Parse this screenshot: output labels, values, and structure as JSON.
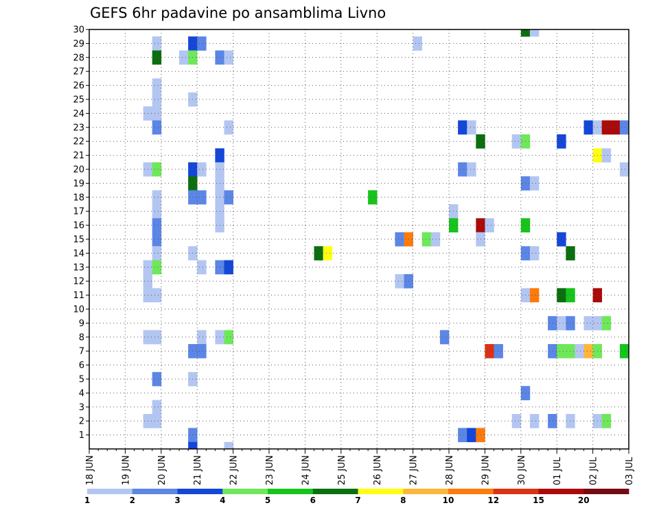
{
  "chart_data": {
    "type": "heatmap",
    "title": "GEFS 6hr padavine po ansamblima Livno",
    "xlabel": "",
    "ylabel": "",
    "x_tick_labels": [
      "18 JUN",
      "19 JUN",
      "20 JUN",
      "21 JUN",
      "22 JUN",
      "23 JUN",
      "24 JUN",
      "25 JUN",
      "26 JUN",
      "27 JUN",
      "28 JUN",
      "29 JUN",
      "30 JUN",
      "01 JUL",
      "02 JUL",
      "03 JUL"
    ],
    "y_tick_labels": [
      "1",
      "2",
      "3",
      "4",
      "5",
      "6",
      "7",
      "8",
      "9",
      "10",
      "11",
      "12",
      "13",
      "14",
      "15",
      "16",
      "17",
      "18",
      "19",
      "20",
      "21",
      "22",
      "23",
      "24",
      "25",
      "26",
      "27",
      "28",
      "29",
      "30"
    ],
    "y_range": [
      0,
      30
    ],
    "x_range_days": [
      0,
      15
    ],
    "time_step_hours": 6,
    "grid": "dotted",
    "colorbar": {
      "placement": "bottom",
      "boundaries": [
        1,
        2,
        3,
        4,
        5,
        6,
        7,
        8,
        10,
        12,
        15,
        20
      ],
      "labels": [
        "1",
        "2",
        "3",
        "4",
        "5",
        "6",
        "7",
        "8",
        "10",
        "12",
        "15",
        "20"
      ],
      "colors": [
        "#b3c6f2",
        "#5b86e6",
        "#1446d8",
        "#6ee85a",
        "#16c41c",
        "#0b6f10",
        "#ffff14",
        "#ffb43a",
        "#ff7a0a",
        "#dc3214",
        "#aa0a0a",
        "#730a14"
      ]
    },
    "cells": [
      {
        "x": 1.75,
        "y": 29,
        "v": 1
      },
      {
        "x": 1.75,
        "y": 28,
        "v": 6
      },
      {
        "x": 1.75,
        "y": 26,
        "v": 1
      },
      {
        "x": 1.75,
        "y": 25,
        "v": 1
      },
      {
        "x": 1.5,
        "y": 24,
        "v": 1
      },
      {
        "x": 1.75,
        "y": 24,
        "v": 1
      },
      {
        "x": 1.75,
        "y": 23,
        "v": 2
      },
      {
        "x": 1.5,
        "y": 20,
        "v": 1
      },
      {
        "x": 1.75,
        "y": 20,
        "v": 4
      },
      {
        "x": 1.75,
        "y": 18,
        "v": 1
      },
      {
        "x": 1.75,
        "y": 17,
        "v": 1
      },
      {
        "x": 1.75,
        "y": 16,
        "v": 2
      },
      {
        "x": 1.75,
        "y": 15,
        "v": 2
      },
      {
        "x": 1.75,
        "y": 14,
        "v": 1
      },
      {
        "x": 1.5,
        "y": 13,
        "v": 1
      },
      {
        "x": 1.75,
        "y": 13,
        "v": 4
      },
      {
        "x": 1.5,
        "y": 12,
        "v": 1
      },
      {
        "x": 1.5,
        "y": 11,
        "v": 1
      },
      {
        "x": 1.75,
        "y": 11,
        "v": 1
      },
      {
        "x": 1.5,
        "y": 8,
        "v": 1
      },
      {
        "x": 1.75,
        "y": 8,
        "v": 1
      },
      {
        "x": 1.75,
        "y": 5,
        "v": 2
      },
      {
        "x": 1.75,
        "y": 3,
        "v": 1
      },
      {
        "x": 1.5,
        "y": 2,
        "v": 1
      },
      {
        "x": 1.75,
        "y": 2,
        "v": 1
      },
      {
        "x": 2.75,
        "y": 29,
        "v": 3
      },
      {
        "x": 3.0,
        "y": 29,
        "v": 2
      },
      {
        "x": 2.5,
        "y": 28,
        "v": 1
      },
      {
        "x": 2.75,
        "y": 28,
        "v": 4
      },
      {
        "x": 2.75,
        "y": 25,
        "v": 1
      },
      {
        "x": 2.75,
        "y": 20,
        "v": 3
      },
      {
        "x": 3.0,
        "y": 20,
        "v": 1
      },
      {
        "x": 2.75,
        "y": 19,
        "v": 6
      },
      {
        "x": 2.75,
        "y": 18,
        "v": 2
      },
      {
        "x": 3.0,
        "y": 18,
        "v": 2
      },
      {
        "x": 2.75,
        "y": 14,
        "v": 1
      },
      {
        "x": 3.0,
        "y": 13,
        "v": 1
      },
      {
        "x": 3.0,
        "y": 8,
        "v": 1
      },
      {
        "x": 2.75,
        "y": 7,
        "v": 2
      },
      {
        "x": 3.0,
        "y": 7,
        "v": 2
      },
      {
        "x": 2.75,
        "y": 5,
        "v": 1
      },
      {
        "x": 2.75,
        "y": 1,
        "v": 2
      },
      {
        "x": 2.75,
        "y": 0,
        "v": 3
      },
      {
        "x": 3.5,
        "y": 28,
        "v": 2
      },
      {
        "x": 3.75,
        "y": 28,
        "v": 1
      },
      {
        "x": 3.75,
        "y": 23,
        "v": 1
      },
      {
        "x": 3.5,
        "y": 21,
        "v": 3
      },
      {
        "x": 3.5,
        "y": 20,
        "v": 1
      },
      {
        "x": 3.5,
        "y": 19,
        "v": 1
      },
      {
        "x": 3.5,
        "y": 18,
        "v": 1
      },
      {
        "x": 3.75,
        "y": 18,
        "v": 2
      },
      {
        "x": 3.5,
        "y": 17,
        "v": 1
      },
      {
        "x": 3.5,
        "y": 16,
        "v": 1
      },
      {
        "x": 3.5,
        "y": 13,
        "v": 2
      },
      {
        "x": 3.75,
        "y": 13,
        "v": 3
      },
      {
        "x": 3.5,
        "y": 8,
        "v": 1
      },
      {
        "x": 3.75,
        "y": 8,
        "v": 4
      },
      {
        "x": 3.75,
        "y": 0,
        "v": 1
      },
      {
        "x": 6.25,
        "y": 14,
        "v": 6
      },
      {
        "x": 6.5,
        "y": 14,
        "v": 7
      },
      {
        "x": 7.75,
        "y": 18,
        "v": 5
      },
      {
        "x": 8.5,
        "y": 15,
        "v": 2
      },
      {
        "x": 8.75,
        "y": 15,
        "v": 10
      },
      {
        "x": 8.5,
        "y": 12,
        "v": 1
      },
      {
        "x": 8.75,
        "y": 12,
        "v": 2
      },
      {
        "x": 9.0,
        "y": 29,
        "v": 1
      },
      {
        "x": 9.25,
        "y": 15,
        "v": 4
      },
      {
        "x": 9.5,
        "y": 15,
        "v": 1
      },
      {
        "x": 9.75,
        "y": 8,
        "v": 2
      },
      {
        "x": 10.0,
        "y": 17,
        "v": 1
      },
      {
        "x": 10.0,
        "y": 16,
        "v": 5
      },
      {
        "x": 10.25,
        "y": 23,
        "v": 3
      },
      {
        "x": 10.5,
        "y": 23,
        "v": 1
      },
      {
        "x": 10.25,
        "y": 20,
        "v": 2
      },
      {
        "x": 10.5,
        "y": 20,
        "v": 1
      },
      {
        "x": 10.25,
        "y": 1,
        "v": 2
      },
      {
        "x": 10.5,
        "y": 1,
        "v": 3
      },
      {
        "x": 10.75,
        "y": 1,
        "v": 10
      },
      {
        "x": 10.75,
        "y": 22,
        "v": 6
      },
      {
        "x": 10.75,
        "y": 16,
        "v": 15
      },
      {
        "x": 11.0,
        "y": 16,
        "v": 1
      },
      {
        "x": 10.75,
        "y": 15,
        "v": 1
      },
      {
        "x": 11.0,
        "y": 7,
        "v": 12
      },
      {
        "x": 11.25,
        "y": 7,
        "v": 2
      },
      {
        "x": 11.75,
        "y": 22,
        "v": 1
      },
      {
        "x": 12.0,
        "y": 22,
        "v": 4
      },
      {
        "x": 11.75,
        "y": 2,
        "v": 1
      },
      {
        "x": 12.0,
        "y": 30,
        "v": 6
      },
      {
        "x": 12.25,
        "y": 30,
        "v": 1
      },
      {
        "x": 12.0,
        "y": 19,
        "v": 2
      },
      {
        "x": 12.25,
        "y": 19,
        "v": 1
      },
      {
        "x": 12.0,
        "y": 16,
        "v": 5
      },
      {
        "x": 12.0,
        "y": 14,
        "v": 2
      },
      {
        "x": 12.25,
        "y": 14,
        "v": 1
      },
      {
        "x": 12.0,
        "y": 11,
        "v": 1
      },
      {
        "x": 12.25,
        "y": 11,
        "v": 10
      },
      {
        "x": 12.0,
        "y": 4,
        "v": 2
      },
      {
        "x": 12.25,
        "y": 2,
        "v": 1
      },
      {
        "x": 12.75,
        "y": 9,
        "v": 2
      },
      {
        "x": 13.0,
        "y": 9,
        "v": 1
      },
      {
        "x": 12.75,
        "y": 7,
        "v": 2
      },
      {
        "x": 13.0,
        "y": 7,
        "v": 4
      },
      {
        "x": 12.75,
        "y": 2,
        "v": 2
      },
      {
        "x": 13.0,
        "y": 22,
        "v": 3
      },
      {
        "x": 13.0,
        "y": 15,
        "v": 3
      },
      {
        "x": 13.0,
        "y": 11,
        "v": 6
      },
      {
        "x": 13.25,
        "y": 9,
        "v": 2
      },
      {
        "x": 13.25,
        "y": 11,
        "v": 5
      },
      {
        "x": 13.25,
        "y": 7,
        "v": 4
      },
      {
        "x": 13.25,
        "y": 14,
        "v": 6
      },
      {
        "x": 13.25,
        "y": 2,
        "v": 1
      },
      {
        "x": 13.5,
        "y": 7,
        "v": 1
      },
      {
        "x": 13.75,
        "y": 23,
        "v": 3
      },
      {
        "x": 13.75,
        "y": 9,
        "v": 1
      },
      {
        "x": 13.75,
        "y": 7,
        "v": 8
      },
      {
        "x": 14.0,
        "y": 23,
        "v": 1
      },
      {
        "x": 14.0,
        "y": 21,
        "v": 7
      },
      {
        "x": 14.0,
        "y": 11,
        "v": 15
      },
      {
        "x": 14.0,
        "y": 9,
        "v": 1
      },
      {
        "x": 14.0,
        "y": 7,
        "v": 4
      },
      {
        "x": 14.0,
        "y": 2,
        "v": 1
      },
      {
        "x": 14.25,
        "y": 23,
        "v": 15
      },
      {
        "x": 14.5,
        "y": 23,
        "v": 15
      },
      {
        "x": 14.25,
        "y": 21,
        "v": 1
      },
      {
        "x": 14.25,
        "y": 9,
        "v": 4
      },
      {
        "x": 14.25,
        "y": 2,
        "v": 4
      },
      {
        "x": 14.75,
        "y": 23,
        "v": 2
      },
      {
        "x": 14.75,
        "y": 20,
        "v": 1
      },
      {
        "x": 15.0,
        "y": 20,
        "v": 1
      },
      {
        "x": 14.75,
        "y": 7,
        "v": 5
      },
      {
        "x": 15.0,
        "y": 7,
        "v": 5
      },
      {
        "x": 15.0,
        "y": 26,
        "v": 3
      },
      {
        "x": 15.0,
        "y": 25,
        "v": 7
      },
      {
        "x": 15.0,
        "y": 21,
        "v": 12
      },
      {
        "x": 15.0,
        "y": 4,
        "v": 3
      },
      {
        "x": 15.0,
        "y": 1,
        "v": 1
      },
      {
        "x": 15.25,
        "y": 25,
        "v": 4
      },
      {
        "x": 15.25,
        "y": 11,
        "v": 10
      },
      {
        "x": 15.25,
        "y": 4,
        "v": 2
      }
    ]
  }
}
